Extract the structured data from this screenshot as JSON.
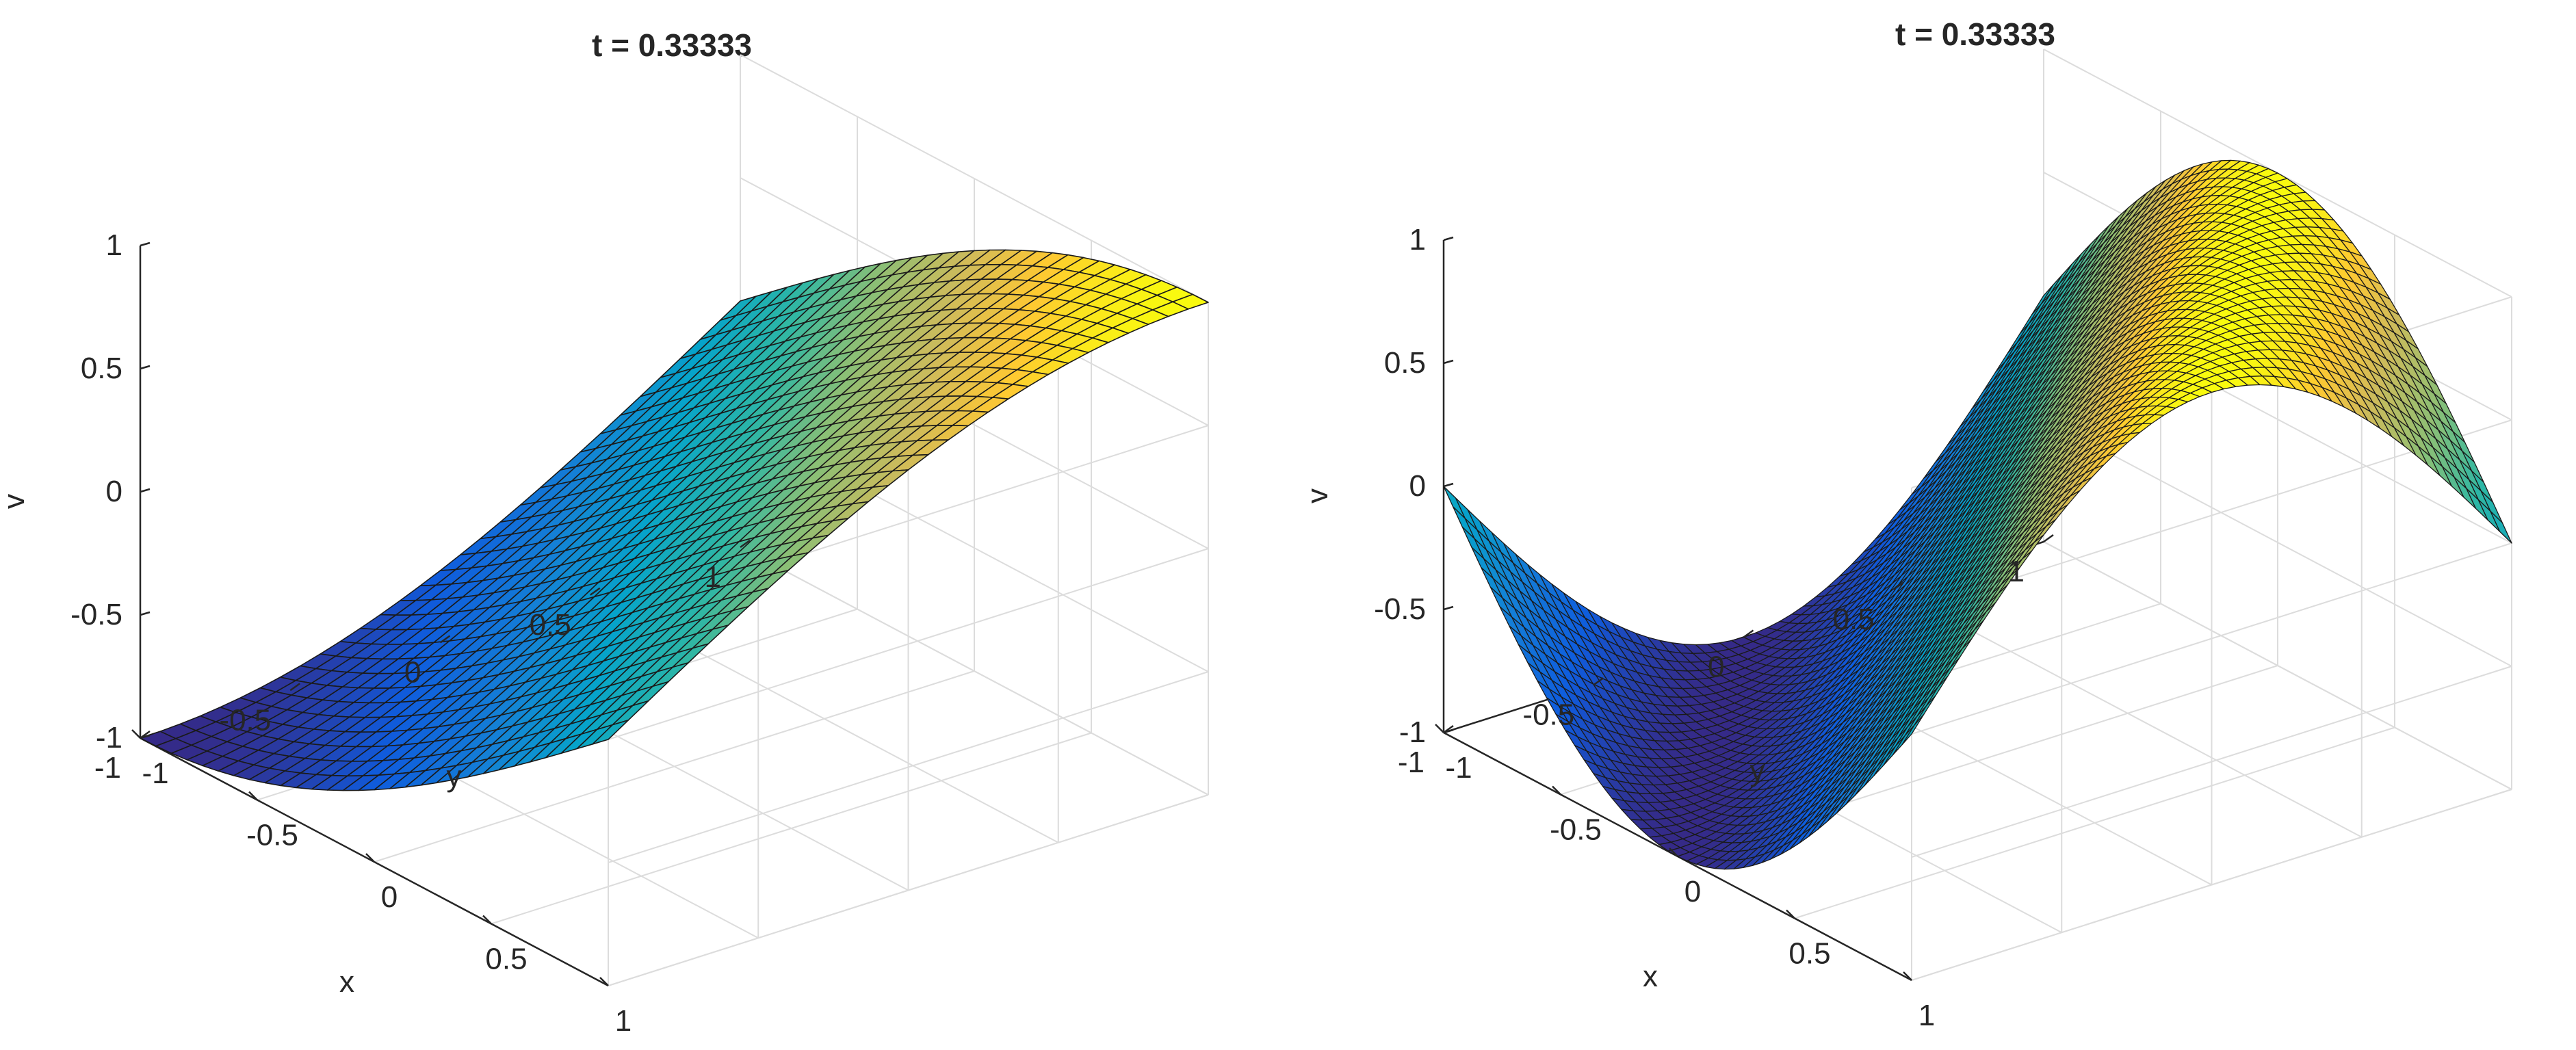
{
  "chart_data": [
    {
      "type": "surface",
      "title": "t = 0.33333",
      "xlabel": "x",
      "ylabel": "y",
      "zlabel": "v",
      "xlim": [
        -1,
        1
      ],
      "ylim": [
        -1,
        1
      ],
      "zlim": [
        -1,
        1
      ],
      "x_ticks": [
        "-1",
        "-0.5",
        "0",
        "0.5",
        "1"
      ],
      "y_ticks": [
        "-1",
        "-0.5",
        "0",
        "0.5",
        "1"
      ],
      "z_ticks": [
        "-1",
        "-0.5",
        "0",
        "0.5",
        "1"
      ],
      "grid": true,
      "colormap": "parula",
      "mesh_size": 30,
      "surface": "v = sin(pi*(x + y)/4)"
    },
    {
      "type": "surface",
      "title": "t = 0.33333",
      "xlabel": "x",
      "ylabel": "y",
      "zlabel": "v",
      "xlim": [
        -1,
        1
      ],
      "ylim": [
        -1,
        1
      ],
      "zlim": [
        -1,
        1
      ],
      "x_ticks": [
        "-1",
        "-0.5",
        "0",
        "0.5",
        "1"
      ],
      "y_ticks": [
        "-1",
        "-0.5",
        "0",
        "0.5",
        "1"
      ],
      "z_ticks": [
        "-1",
        "-0.5",
        "0",
        "0.5",
        "1"
      ],
      "grid": true,
      "colormap": "parula",
      "mesh_size": 50,
      "surface": "v = sin(pi*(x + y)/2)"
    }
  ]
}
